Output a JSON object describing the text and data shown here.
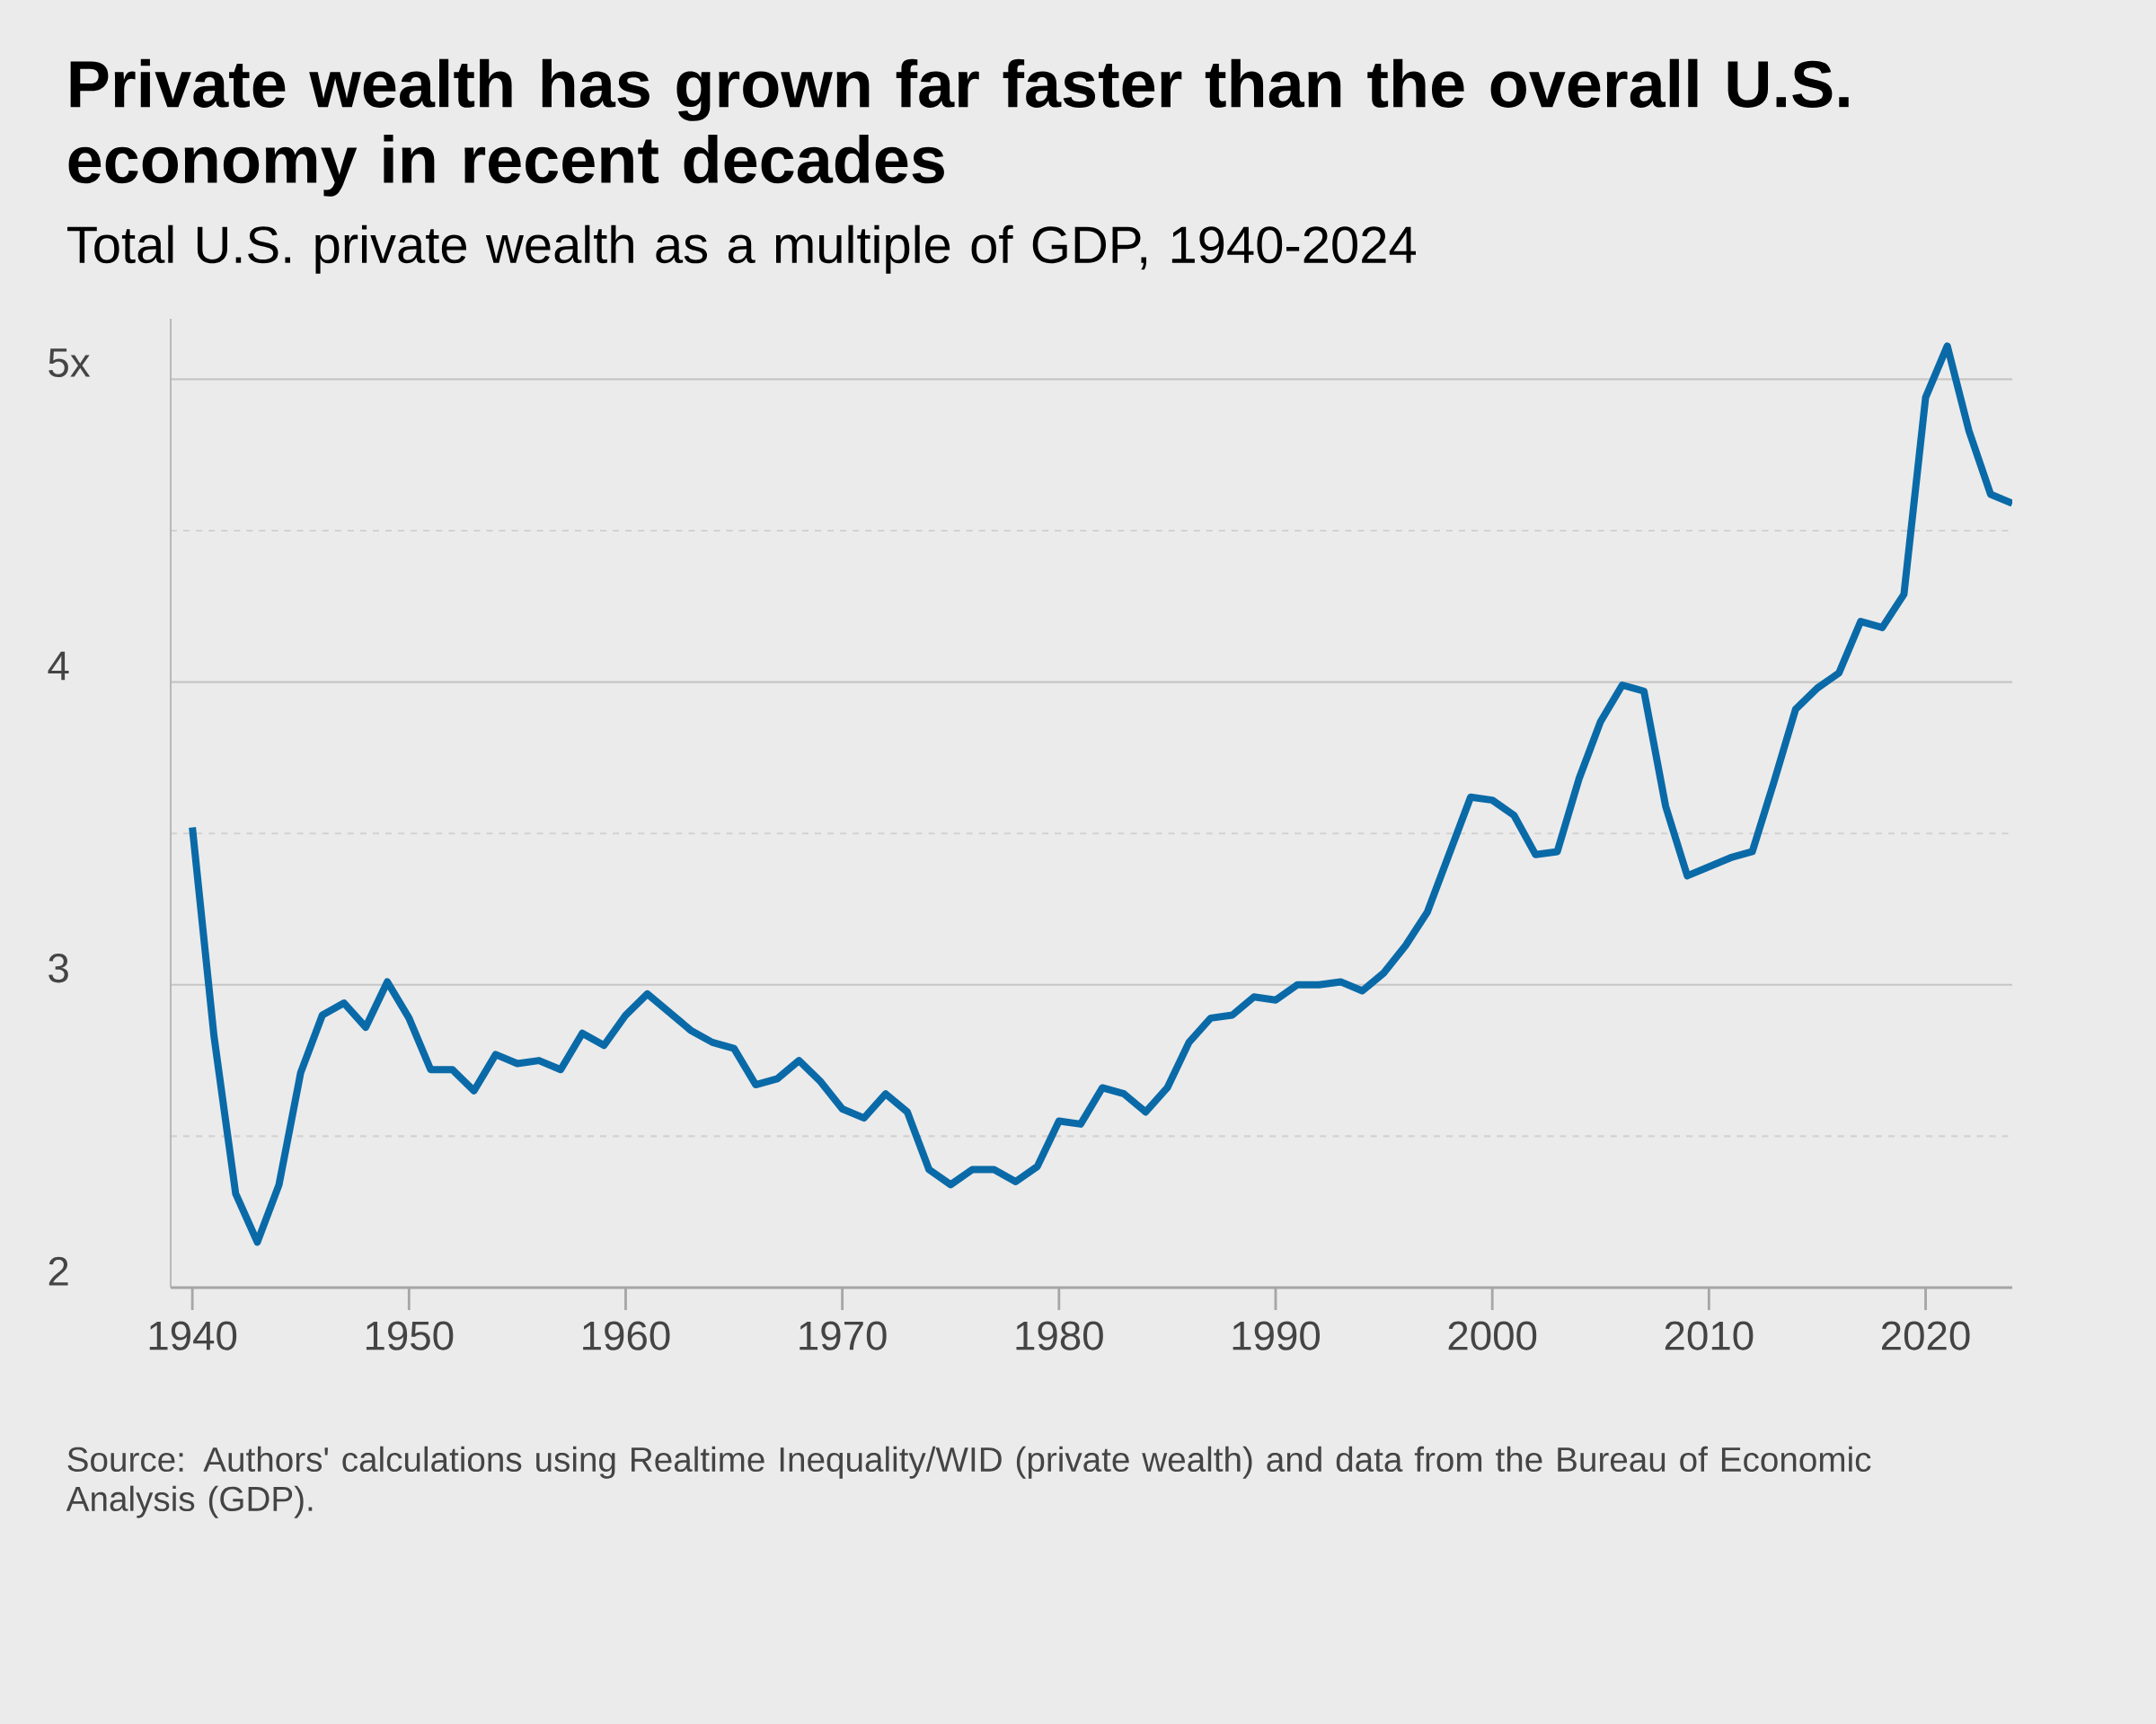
{
  "chart_data": {
    "type": "line",
    "title": "Private wealth has grown far faster than the overall U.S. economy in recent decades",
    "subtitle": "Total U.S. private wealth as a multiple of GDP, 1940-2024",
    "annotations": [
      "Source: Authors' calculations using Realtime Inequality/WID (private wealth) and data from the Bureau of Economic Analysis (GDP)."
    ],
    "x": [
      1940,
      1941,
      1942,
      1943,
      1944,
      1945,
      1946,
      1947,
      1948,
      1949,
      1950,
      1951,
      1952,
      1953,
      1954,
      1955,
      1956,
      1957,
      1958,
      1959,
      1960,
      1961,
      1962,
      1963,
      1964,
      1965,
      1966,
      1967,
      1968,
      1969,
      1970,
      1971,
      1972,
      1973,
      1974,
      1975,
      1976,
      1977,
      1978,
      1979,
      1980,
      1981,
      1982,
      1983,
      1984,
      1985,
      1986,
      1987,
      1988,
      1989,
      1990,
      1991,
      1992,
      1993,
      1994,
      1995,
      1996,
      1997,
      1998,
      1999,
      2000,
      2001,
      2002,
      2003,
      2004,
      2005,
      2006,
      2007,
      2008,
      2009,
      2010,
      2011,
      2012,
      2013,
      2014,
      2015,
      2016,
      2017,
      2018,
      2019,
      2020,
      2021,
      2022,
      2023,
      2024
    ],
    "values": [
      3.52,
      2.83,
      2.31,
      2.15,
      2.34,
      2.71,
      2.9,
      2.94,
      2.86,
      3.01,
      2.89,
      2.72,
      2.72,
      2.65,
      2.77,
      2.74,
      2.75,
      2.72,
      2.84,
      2.8,
      2.9,
      2.97,
      2.91,
      2.85,
      2.81,
      2.79,
      2.67,
      2.69,
      2.75,
      2.68,
      2.59,
      2.56,
      2.64,
      2.58,
      2.39,
      2.34,
      2.39,
      2.39,
      2.35,
      2.4,
      2.55,
      2.54,
      2.66,
      2.64,
      2.58,
      2.66,
      2.81,
      2.89,
      2.9,
      2.96,
      2.95,
      3.0,
      3.0,
      3.01,
      2.98,
      3.04,
      3.13,
      3.24,
      3.43,
      3.62,
      3.61,
      3.56,
      3.43,
      3.44,
      3.68,
      3.87,
      3.99,
      3.97,
      3.59,
      3.36,
      3.39,
      3.42,
      3.44,
      3.67,
      3.91,
      3.98,
      4.03,
      4.2,
      4.18,
      4.29,
      4.94,
      5.11,
      4.83,
      4.62,
      4.59
    ],
    "color": "#0a6aa8",
    "xlim": [
      1939,
      2024
    ],
    "xticks": [
      1940,
      1950,
      1960,
      1970,
      1980,
      1990,
      2000,
      2010,
      2020
    ],
    "ylim": [
      2,
      5.2
    ],
    "yticks": [
      2,
      3,
      4,
      {
        "value": 5,
        "label": "5x"
      },
      {
        "value": 2.5,
        "label": null
      },
      {
        "value": 3.5,
        "label": null
      },
      {
        "value": 4.5,
        "label": null
      }
    ],
    "grid": "y"
  }
}
